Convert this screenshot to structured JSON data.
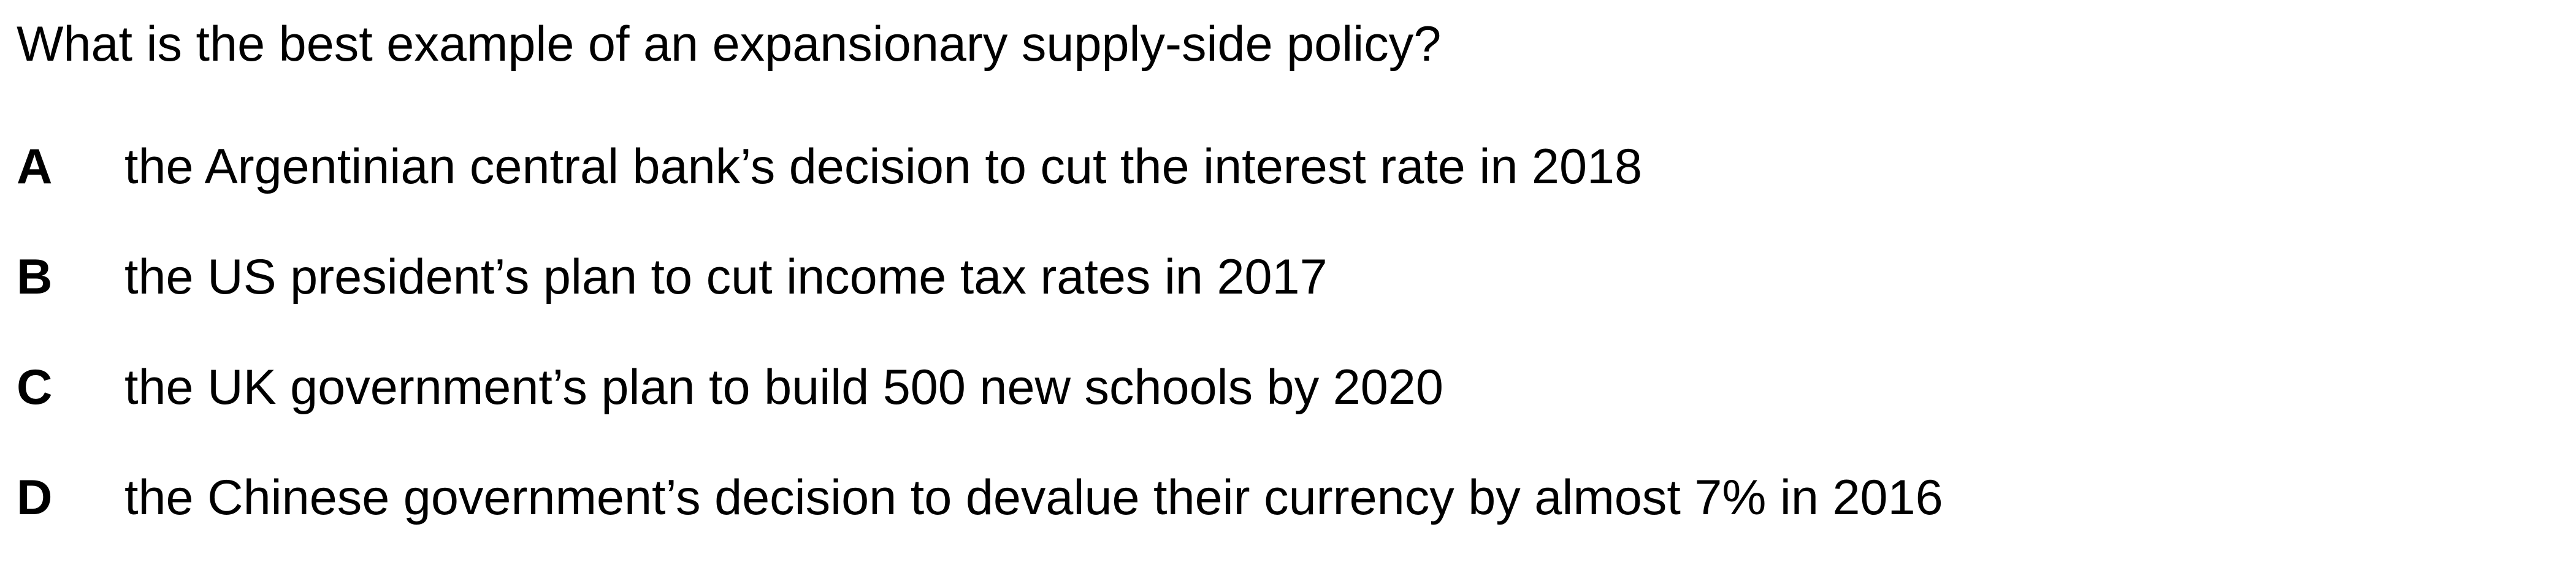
{
  "question": {
    "text": "What is the best example of an expansionary supply-side policy?"
  },
  "options": [
    {
      "letter": "A",
      "text": "the Argentinian central bank’s decision to cut the interest rate in 2018"
    },
    {
      "letter": "B",
      "text": "the US president’s plan to cut income tax rates in 2017"
    },
    {
      "letter": "C",
      "text": "the UK government’s plan to build 500 new schools by 2020"
    },
    {
      "letter": "D",
      "text": "the Chinese government’s decision to devalue their currency by almost 7% in 2016"
    }
  ]
}
